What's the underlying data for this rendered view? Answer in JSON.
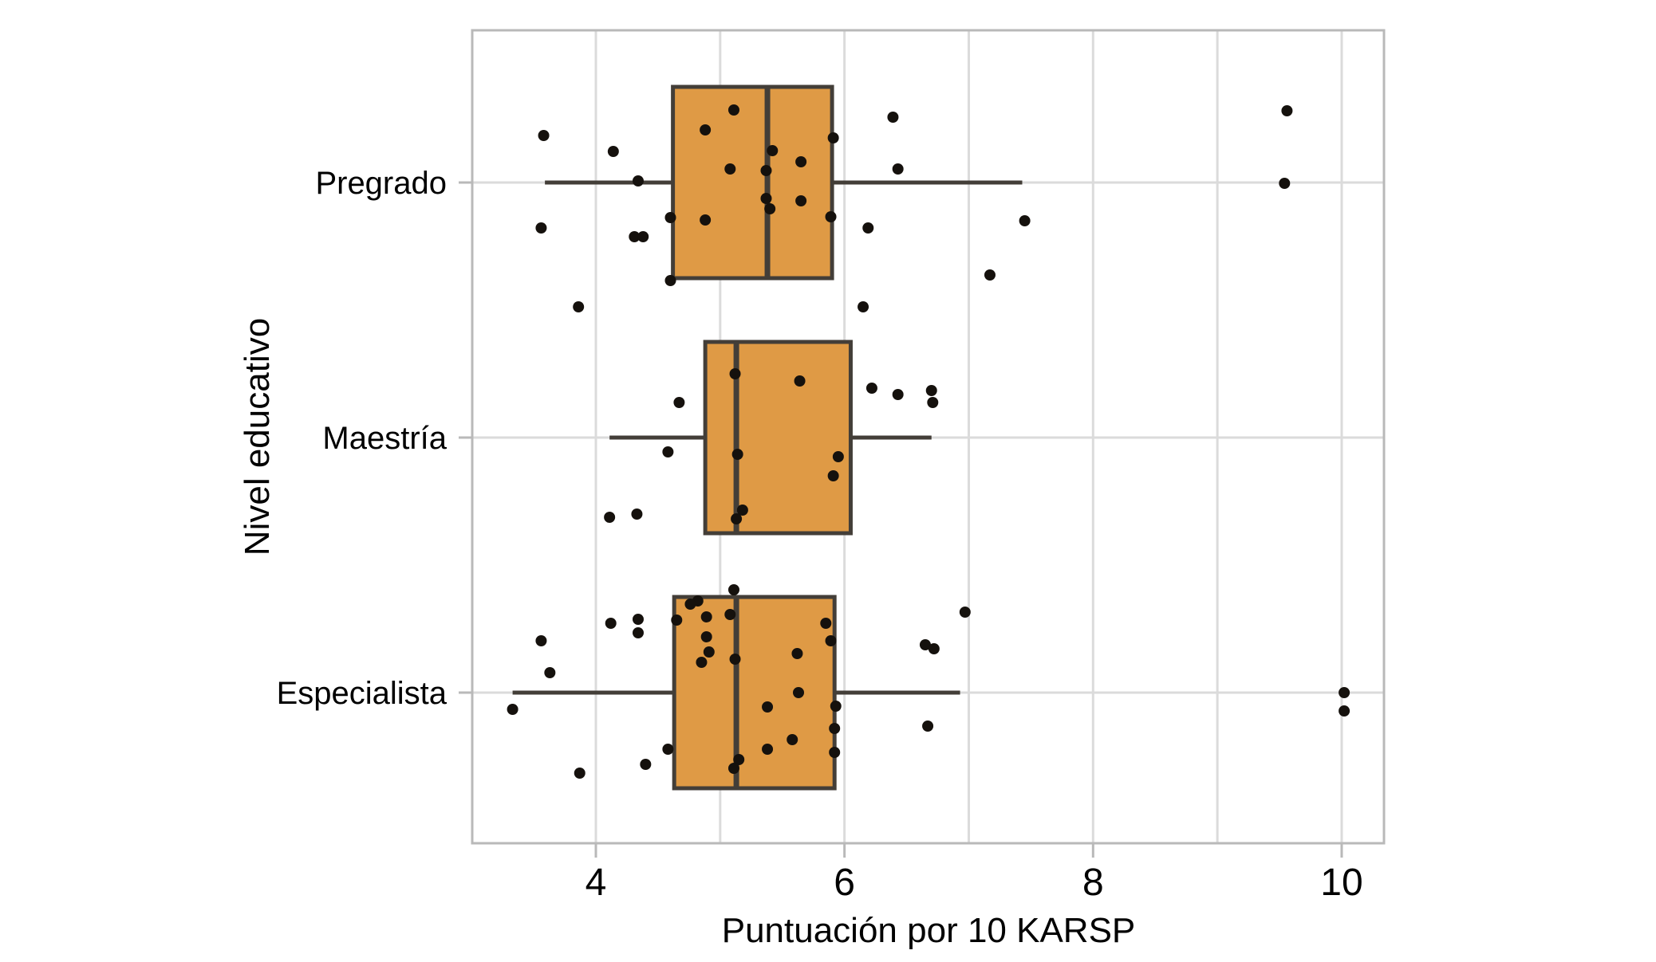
{
  "chart_data": {
    "type": "boxplot",
    "orientation": "horizontal",
    "title": "",
    "x_axis": {
      "label": "Puntuación por 10 KARSP",
      "ticks": [
        4,
        6,
        8,
        10
      ],
      "gridlines": [
        4,
        5,
        6,
        7,
        8,
        9,
        10
      ],
      "range": [
        3.0,
        10.35
      ]
    },
    "y_axis": {
      "label": "Nivel educativo",
      "categories": [
        "Pregrado",
        "Maestría",
        "Especialista"
      ]
    },
    "boxes": [
      {
        "category": "Pregrado",
        "whisker_min": 3.59,
        "q1": 4.62,
        "median": 5.38,
        "q3": 5.9,
        "whisker_max": 7.43
      },
      {
        "category": "Maestría",
        "whisker_min": 4.11,
        "q1": 4.88,
        "median": 5.13,
        "q3": 6.05,
        "whisker_max": 6.7
      },
      {
        "category": "Especialista",
        "whisker_min": 3.33,
        "q1": 4.63,
        "median": 5.13,
        "q3": 5.92,
        "whisker_max": 6.93
      }
    ],
    "points_note": "each point = [score value, vertical jitter offset in px from category centerline]",
    "points": {
      "Pregrado": [
        [
          3.58,
          -59
        ],
        [
          4.14,
          -39
        ],
        [
          4.34,
          -2
        ],
        [
          3.56,
          57
        ],
        [
          4.31,
          68
        ],
        [
          4.38,
          68
        ],
        [
          3.86,
          156
        ],
        [
          5.11,
          -91
        ],
        [
          4.88,
          -66
        ],
        [
          5.42,
          -40
        ],
        [
          5.08,
          -17
        ],
        [
          5.37,
          -15
        ],
        [
          5.65,
          -26
        ],
        [
          5.91,
          -56
        ],
        [
          5.37,
          20
        ],
        [
          5.4,
          33
        ],
        [
          5.65,
          23
        ],
        [
          4.6,
          44
        ],
        [
          4.88,
          47
        ],
        [
          5.89,
          43
        ],
        [
          4.6,
          123
        ],
        [
          6.39,
          -82
        ],
        [
          6.43,
          -17
        ],
        [
          6.19,
          57
        ],
        [
          6.15,
          156
        ],
        [
          7.45,
          48
        ],
        [
          7.17,
          116
        ],
        [
          9.54,
          1
        ],
        [
          9.56,
          -90
        ]
      ],
      "Maestría": [
        [
          4.67,
          -44
        ],
        [
          4.58,
          18
        ],
        [
          4.11,
          100
        ],
        [
          4.33,
          96
        ],
        [
          5.12,
          -80
        ],
        [
          5.14,
          21
        ],
        [
          5.18,
          91
        ],
        [
          5.13,
          102
        ],
        [
          5.64,
          -71
        ],
        [
          5.95,
          24
        ],
        [
          5.91,
          48
        ],
        [
          6.22,
          -62
        ],
        [
          6.43,
          -54
        ],
        [
          6.7,
          -59
        ],
        [
          6.71,
          -44
        ]
      ],
      "Especialista": [
        [
          3.56,
          -65
        ],
        [
          3.63,
          -25
        ],
        [
          3.33,
          21
        ],
        [
          3.87,
          101
        ],
        [
          4.12,
          -87
        ],
        [
          4.34,
          -92
        ],
        [
          4.34,
          -75
        ],
        [
          4.4,
          90
        ],
        [
          4.58,
          71
        ],
        [
          5.11,
          -129
        ],
        [
          4.82,
          -115
        ],
        [
          4.76,
          -111
        ],
        [
          4.65,
          -91
        ],
        [
          4.89,
          -95
        ],
        [
          5.08,
          -98
        ],
        [
          4.89,
          -70
        ],
        [
          4.91,
          -51
        ],
        [
          4.85,
          -38
        ],
        [
          5.12,
          -42
        ],
        [
          5.62,
          -49
        ],
        [
          5.63,
          0
        ],
        [
          5.38,
          18
        ],
        [
          5.58,
          59
        ],
        [
          5.38,
          71
        ],
        [
          5.15,
          84
        ],
        [
          5.11,
          95
        ],
        [
          5.85,
          -87
        ],
        [
          5.89,
          -65
        ],
        [
          5.93,
          17
        ],
        [
          5.92,
          45
        ],
        [
          5.92,
          75
        ],
        [
          6.97,
          -101
        ],
        [
          6.65,
          -60
        ],
        [
          6.72,
          -55
        ],
        [
          6.67,
          42
        ],
        [
          10.02,
          0
        ],
        [
          10.02,
          23
        ]
      ]
    },
    "colors": {
      "box_fill": "#DF9A45",
      "box_stroke": "#433E38",
      "point": "#15110D",
      "grid": "#DBDBDB",
      "panel_border": "#B9B9B9",
      "text": "#000000",
      "background": "#FFFFFF"
    },
    "legend": "none"
  }
}
